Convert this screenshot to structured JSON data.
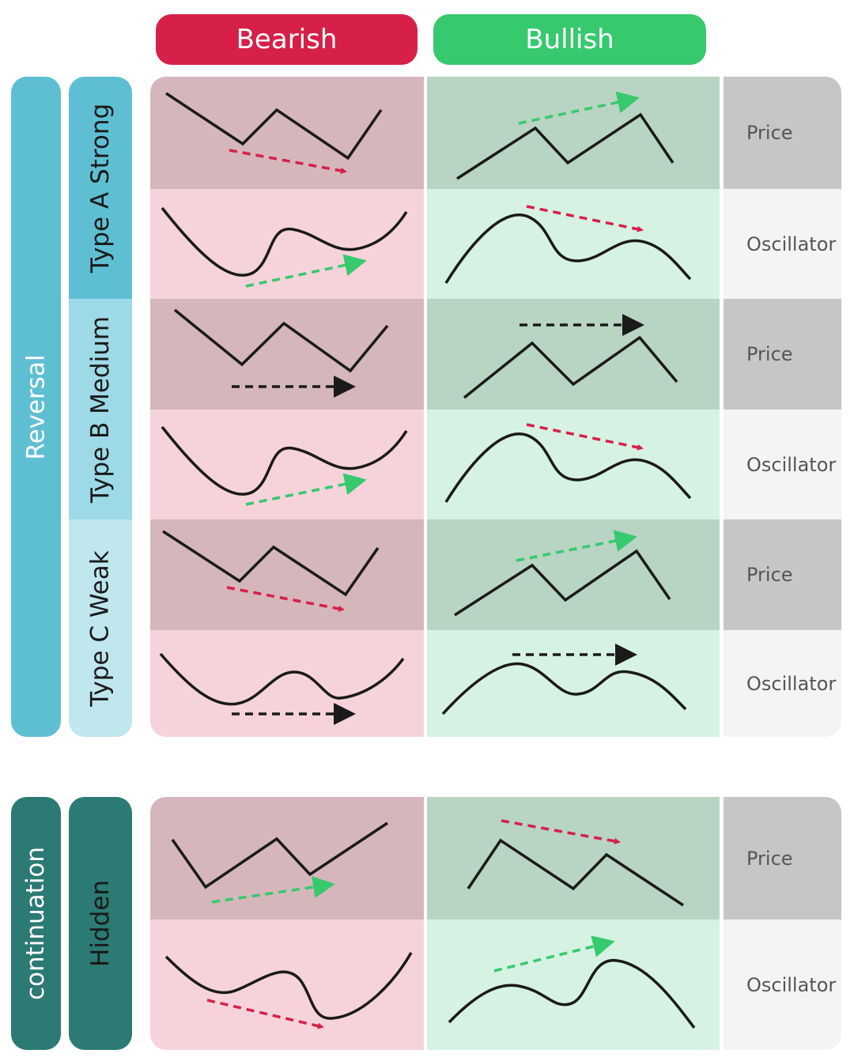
{
  "columns": {
    "bearish": "Bearish",
    "bullish": "Bullish"
  },
  "groups": {
    "reversal": "Reversal",
    "continuation": "continuation"
  },
  "types": {
    "a": "Type A Strong",
    "b": "Type B Medium",
    "c": "Type C Weak",
    "hidden": "Hidden"
  },
  "row_labels": {
    "price": "Price",
    "oscillator": "Oscillator"
  },
  "colors": {
    "bearish": "#d62048",
    "bullish": "#36c96e",
    "reversal": "#5fbfd2",
    "type_b": "#9dd9e6",
    "type_c": "#c0e6ee",
    "continuation": "#2b7a73",
    "bearish_price_bg": "#d5b6bb",
    "bearish_osc_bg": "#f6d3da",
    "bullish_price_bg": "#b8d4c2",
    "bullish_osc_bg": "#d6f2e2",
    "price_label_bg": "#c6c6c6",
    "osc_label_bg": "#f4f4f4",
    "arrow_red": "#d62048",
    "arrow_green": "#36c96e",
    "arrow_black": "#1a1a1a"
  }
}
